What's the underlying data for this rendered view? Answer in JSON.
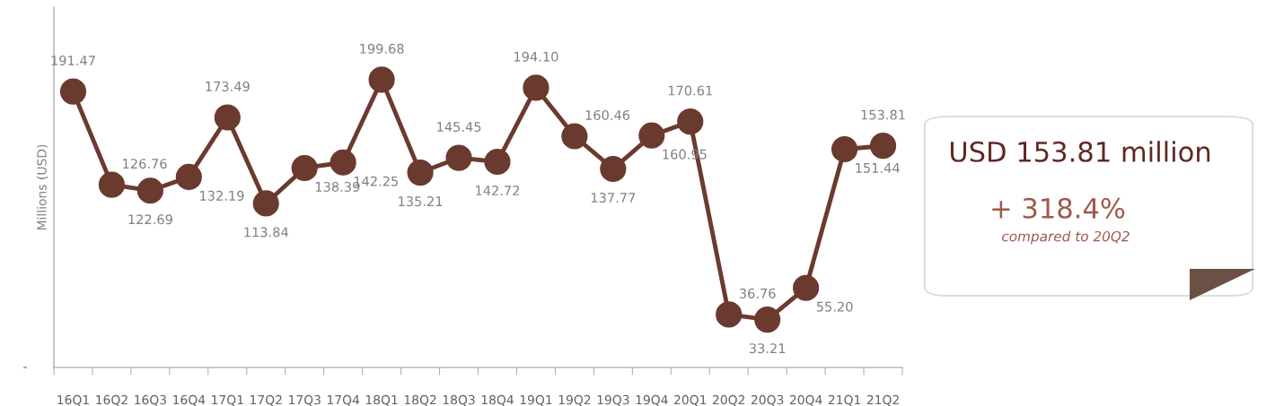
{
  "chart_data": {
    "type": "line",
    "ylabel": "Millions (USD)",
    "ylim": [
      0,
      250
    ],
    "categories": [
      "16Q1",
      "16Q2",
      "16Q3",
      "16Q4",
      "17Q1",
      "17Q2",
      "17Q3",
      "17Q4",
      "18Q1",
      "18Q2",
      "18Q3",
      "18Q4",
      "19Q1",
      "19Q2",
      "19Q3",
      "19Q4",
      "20Q1",
      "20Q2",
      "20Q3",
      "20Q4",
      "21Q1",
      "21Q2"
    ],
    "series": [
      {
        "color": "#6b3a2e",
        "values": [
          191.47,
          126.76,
          122.69,
          132.19,
          173.49,
          113.84,
          138.39,
          142.25,
          199.68,
          135.21,
          145.45,
          142.72,
          194.1,
          160.46,
          137.77,
          160.95,
          170.61,
          36.76,
          33.21,
          55.2,
          151.44,
          153.81
        ],
        "value_labels": [
          "191.47",
          "126.76",
          "122.69",
          "132.19",
          "173.49",
          "113.84",
          "138.39",
          "142.25",
          "199.68",
          "135.21",
          "145.45",
          "142.72",
          "194.10",
          "160.46",
          "137.77",
          "160.95",
          "170.61",
          "36.76",
          "33.21",
          "55.20",
          "151.44",
          "153.81"
        ]
      }
    ],
    "marker": "circle",
    "line_style": "solid",
    "grid": false,
    "annotations": [
      "-",
      "USD 153.81 million",
      "+ 318.4%",
      "compared to 20Q2"
    ]
  }
}
